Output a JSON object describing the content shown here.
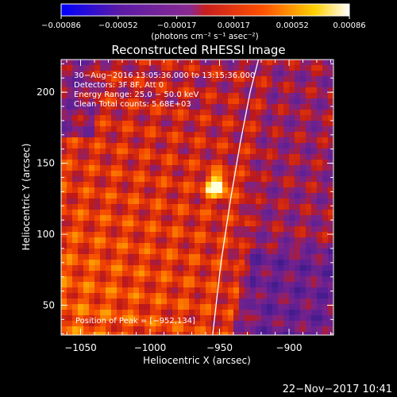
{
  "chart_data": {
    "type": "heatmap",
    "title": "Reconstructed RHESSI Image",
    "xlabel": "Heliocentric X (arcsec)",
    "ylabel": "Heliocentric Y (arcsec)",
    "xlim": [
      -1064,
      -868
    ],
    "ylim": [
      29,
      223
    ],
    "x_ticks": [
      {
        "value": -1050,
        "label": "−1050"
      },
      {
        "value": -1000,
        "label": "−1000"
      },
      {
        "value": -950,
        "label": "−950"
      },
      {
        "value": -900,
        "label": "−900"
      }
    ],
    "y_ticks": [
      {
        "value": 50,
        "label": "50"
      },
      {
        "value": 100,
        "label": "100"
      },
      {
        "value": 150,
        "label": "150"
      },
      {
        "value": 200,
        "label": "200"
      }
    ],
    "colorbar": {
      "range": [
        -0.00086,
        0.00086
      ],
      "ticks": [
        {
          "value": -0.00086,
          "label": "−0.00086"
        },
        {
          "value": -0.00052,
          "label": "−0.00052"
        },
        {
          "value": -0.00017,
          "label": "−0.00017"
        },
        {
          "value": 0.00017,
          "label": "0.00017"
        },
        {
          "value": 0.00052,
          "label": "0.00052"
        },
        {
          "value": 0.00086,
          "label": "0.00086"
        }
      ],
      "unit_label": "(photons cm⁻² s⁻¹ asec⁻²)"
    },
    "info_lines": [
      "30−Aug−2016 13:05:36.000 to 13:15:36.000",
      "Detectors: 3F 8F, Att 0",
      "Energy Range: 25.0 − 50.0 keV",
      "Clean    Total counts: 5.68E+03"
    ],
    "peak_label": "Position of Peak = [−952,134]",
    "peak": {
      "x": -952,
      "y": 134
    },
    "limb_x": [
      -955,
      -949,
      -942,
      -935,
      -928,
      -922
    ],
    "limb_y": [
      29,
      80,
      125,
      165,
      200,
      223
    ],
    "grid": false,
    "colors": {
      "background": "#000000",
      "foreground": "#ffffff",
      "colorbar_low": "#0000ff",
      "colorbar_high": "#ffffff"
    }
  },
  "footer": {
    "timestamp": "22−Nov−2017 10:41"
  }
}
